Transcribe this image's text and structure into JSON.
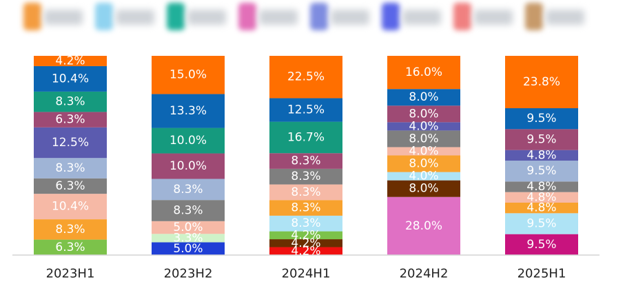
{
  "legend_colors": [
    "#F39C40",
    "#8FD3F0",
    "#20B09A",
    "#E26FB8",
    "#7E8CE0",
    "#5A66E8",
    "#F08080",
    "#C79A6A"
  ],
  "chart_data": {
    "type": "bar",
    "stacked": true,
    "title": "",
    "xlabel": "",
    "ylabel": "",
    "ylim": [
      0,
      100
    ],
    "grid": false,
    "legend": "top",
    "categories": [
      "2023H1",
      "2023H2",
      "2024H1",
      "2024H2",
      "2025H1"
    ],
    "bars": [
      {
        "category": "2023H1",
        "segments": [
          {
            "value": 6.3,
            "label": "6.3%",
            "color": "#7CC24A"
          },
          {
            "value": 8.3,
            "label": "8.3%",
            "color": "#F8A22E"
          },
          {
            "value": 10.4,
            "label": "10.4%",
            "color": "#F6B9A6"
          },
          {
            "value": 6.3,
            "label": "6.3%",
            "color": "#7F7F7F"
          },
          {
            "value": 8.3,
            "label": "8.3%",
            "color": "#9FB4D6"
          },
          {
            "value": 12.5,
            "label": "12.5%",
            "color": "#5B5BAF"
          },
          {
            "value": 6.3,
            "label": "6.3%",
            "color": "#9E4A74"
          },
          {
            "value": 8.3,
            "label": "8.3%",
            "color": "#159A7E"
          },
          {
            "value": 10.4,
            "label": "10.4%",
            "color": "#0C66B3"
          },
          {
            "value": 4.2,
            "label": "4.2%",
            "color": "#FF6F00"
          }
        ]
      },
      {
        "category": "2023H2",
        "segments": [
          {
            "value": 5.0,
            "label": "5.0%",
            "color": "#1F3FD6"
          },
          {
            "value": 3.3,
            "label": "3.3%",
            "color": "#CFF2C8"
          },
          {
            "value": 5.0,
            "label": "5.0%",
            "color": "#F6B9A6"
          },
          {
            "value": 8.3,
            "label": "8.3%",
            "color": "#7F7F7F"
          },
          {
            "value": 8.3,
            "label": "8.3%",
            "color": "#9FB4D6"
          },
          {
            "value": 10.0,
            "label": "10.0%",
            "color": "#9E4A74"
          },
          {
            "value": 10.0,
            "label": "10.0%",
            "color": "#159A7E"
          },
          {
            "value": 13.3,
            "label": "13.3%",
            "color": "#0C66B3"
          },
          {
            "value": 15.0,
            "label": "15.0%",
            "color": "#FF6F00"
          }
        ]
      },
      {
        "category": "2024H1",
        "segments": [
          {
            "value": 4.2,
            "label": "4.2%",
            "color": "#F01010"
          },
          {
            "value": 4.2,
            "label": "4.2%",
            "color": "#6B2E00"
          },
          {
            "value": 4.2,
            "label": "4.2%",
            "color": "#7CC24A"
          },
          {
            "value": 8.3,
            "label": "8.3%",
            "color": "#AEE3F5"
          },
          {
            "value": 8.3,
            "label": "8.3%",
            "color": "#F8A22E"
          },
          {
            "value": 8.3,
            "label": "8.3%",
            "color": "#F6B9A6"
          },
          {
            "value": 8.3,
            "label": "8.3%",
            "color": "#7F7F7F"
          },
          {
            "value": 8.3,
            "label": "8.3%",
            "color": "#9E4A74"
          },
          {
            "value": 16.7,
            "label": "16.7%",
            "color": "#159A7E"
          },
          {
            "value": 12.5,
            "label": "12.5%",
            "color": "#0C66B3"
          },
          {
            "value": 22.5,
            "label": "22.5%",
            "color": "#FF6F00"
          }
        ]
      },
      {
        "category": "2024H2",
        "segments": [
          {
            "value": 28.0,
            "label": "28.0%",
            "color": "#E070C4"
          },
          {
            "value": 8.0,
            "label": "8.0%",
            "color": "#6B2E00"
          },
          {
            "value": 4.0,
            "label": "4.0%",
            "color": "#AEE3F5"
          },
          {
            "value": 8.0,
            "label": "8.0%",
            "color": "#F8A22E"
          },
          {
            "value": 4.0,
            "label": "4.0%",
            "color": "#F6B9A6"
          },
          {
            "value": 8.0,
            "label": "8.0%",
            "color": "#7F7F7F"
          },
          {
            "value": 4.0,
            "label": "4.0%",
            "color": "#5B5BAF"
          },
          {
            "value": 8.0,
            "label": "8.0%",
            "color": "#9E4A74"
          },
          {
            "value": 8.0,
            "label": "8.0%",
            "color": "#0C66B3"
          },
          {
            "value": 16.0,
            "label": "16.0%",
            "color": "#FF6F00"
          }
        ]
      },
      {
        "category": "2025H1",
        "segments": [
          {
            "value": 9.5,
            "label": "9.5%",
            "color": "#C8137E"
          },
          {
            "value": 9.5,
            "label": "9.5%",
            "color": "#AEE3F5"
          },
          {
            "value": 4.8,
            "label": "4.8%",
            "color": "#F8A22E"
          },
          {
            "value": 4.8,
            "label": "4.8%",
            "color": "#F6B9A6"
          },
          {
            "value": 4.8,
            "label": "4.8%",
            "color": "#7F7F7F"
          },
          {
            "value": 9.5,
            "label": "9.5%",
            "color": "#9FB4D6"
          },
          {
            "value": 4.8,
            "label": "4.8%",
            "color": "#5B5BAF"
          },
          {
            "value": 9.5,
            "label": "9.5%",
            "color": "#9E4A74"
          },
          {
            "value": 9.5,
            "label": "9.5%",
            "color": "#0C66B3"
          },
          {
            "value": 23.8,
            "label": "23.8%",
            "color": "#FF6F00"
          }
        ]
      }
    ]
  }
}
